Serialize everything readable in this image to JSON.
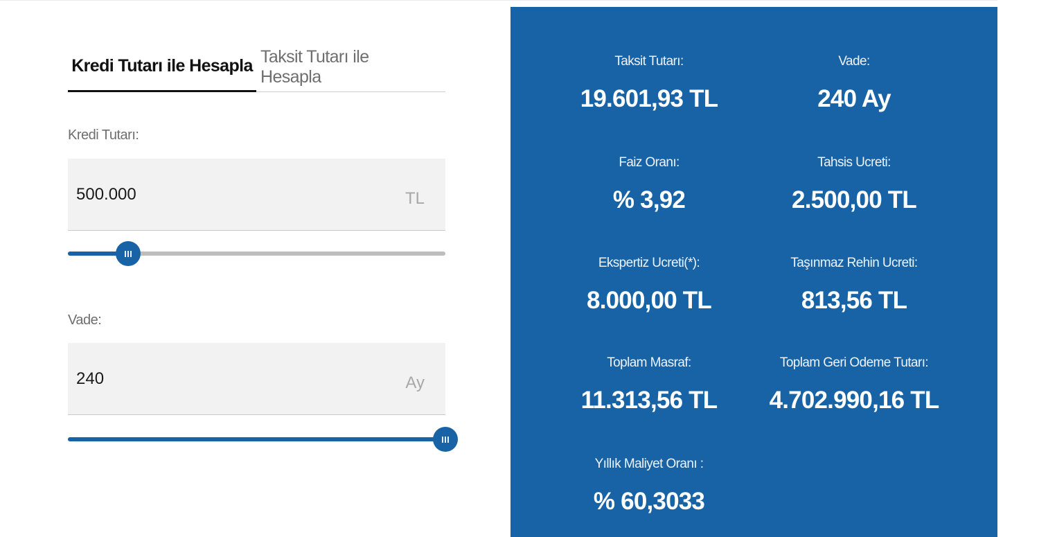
{
  "form": {
    "tabs": [
      {
        "label": "Kredi Tutarı ile Hesapla",
        "active": true
      },
      {
        "label": "Taksit Tutarı ile Hesapla",
        "active": false
      }
    ],
    "amount": {
      "label": "Kredi Tutarı:",
      "value": "500.000",
      "unit": "TL",
      "slider_fraction": 0.16
    },
    "term": {
      "label": "Vade:",
      "value": "240",
      "unit": "Ay",
      "slider_fraction": 1.0
    }
  },
  "results": {
    "installment": {
      "label": "Taksit Tutarı:",
      "value": "19.601,93 TL"
    },
    "term": {
      "label": "Vade:",
      "value": "240 Ay"
    },
    "interest_rate": {
      "label": "Faiz Oranı:",
      "value": "% 3,92"
    },
    "allocation_fee": {
      "label": "Tahsis Ucreti:",
      "value": "2.500,00 TL"
    },
    "appraisal_fee": {
      "label": "Ekspertiz Ucreti(*):",
      "value": "8.000,00 TL"
    },
    "mortgage_fee": {
      "label": "Taşınmaz Rehin Ucreti:",
      "value": "813,56 TL"
    },
    "total_expense": {
      "label": "Toplam Masraf:",
      "value": "11.313,56 TL"
    },
    "total_repayment": {
      "label": "Toplam Geri Odeme Tutarı:",
      "value": "4.702.990,16 TL"
    },
    "annual_cost_rate": {
      "label": "Yıllık Maliyet Oranı :",
      "value": "% 60,3033"
    }
  },
  "colors": {
    "accent": "#1863a6",
    "panel_text": "#ffffff",
    "input_bg": "#f2f2f2",
    "track": "#bdbdbd"
  }
}
